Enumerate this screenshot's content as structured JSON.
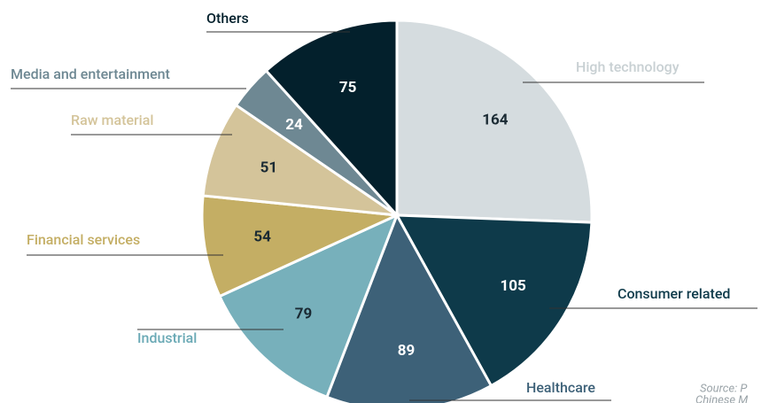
{
  "chart_data": {
    "type": "pie",
    "categories": [
      "High technology",
      "Consumer related",
      "Healthcare",
      "Industrial",
      "Financial services",
      "Raw material",
      "Media and entertainment",
      "Others"
    ],
    "values": [
      164,
      105,
      89,
      79,
      54,
      51,
      24,
      75
    ],
    "colors": [
      "#d5dcdf",
      "#0e3a4a",
      "#3d6178",
      "#77b0bb",
      "#c4ae64",
      "#d4c49a",
      "#6e8893",
      "#03202c"
    ],
    "source": [
      "Source: P",
      "Chinese M"
    ]
  }
}
